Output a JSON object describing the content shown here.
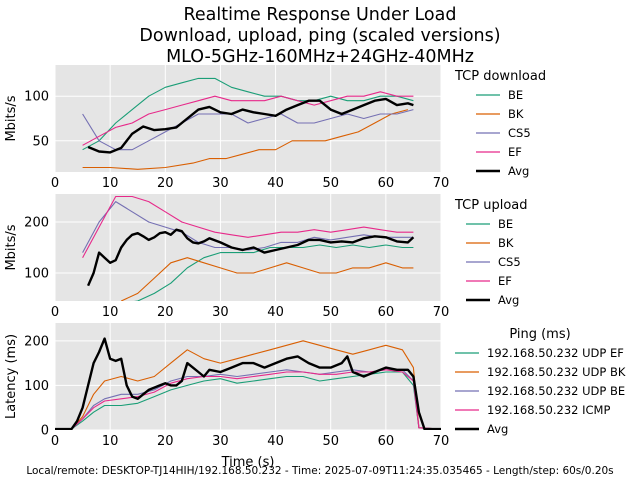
{
  "title_lines": [
    "Realtime Response Under Load",
    "Download, upload, ping (scaled versions)",
    "MLO-5GHz-160MHz+24GHz-40MHz"
  ],
  "footer": "Local/remote: DESKTOP-TJ14HIH/192.168.50.232 - Time: 2025-07-09T11:24:35.035465 - Length/step: 60s/0.20s",
  "colors": {
    "BE": "#1b9e77",
    "BK": "#d95f02",
    "CS5": "#7570b3",
    "EF": "#e7298a",
    "Avg": "#000000",
    "panel_bg": "#e5e5e5",
    "grid": "#ffffff"
  },
  "chart_data": [
    {
      "type": "line",
      "legend_title": "TCP download",
      "ylabel": "Mbits/s",
      "xlabel": "",
      "xlim": [
        0,
        70
      ],
      "ylim": [
        15,
        135
      ],
      "xticks": [
        0,
        10,
        20,
        30,
        40,
        50,
        60,
        70
      ],
      "yticks": [
        50,
        100
      ],
      "series": [
        {
          "name": "BE",
          "color": "#1b9e77",
          "x": [
            5,
            8,
            11,
            14,
            17,
            20,
            23,
            26,
            29,
            32,
            35,
            38,
            41,
            44,
            47,
            50,
            53,
            56,
            59,
            62,
            65
          ],
          "y": [
            40,
            50,
            70,
            85,
            100,
            110,
            115,
            120,
            120,
            110,
            105,
            100,
            100,
            95,
            95,
            100,
            95,
            95,
            100,
            100,
            95
          ]
        },
        {
          "name": "BK",
          "color": "#d95f02",
          "x": [
            5,
            10,
            15,
            20,
            25,
            28,
            31,
            34,
            37,
            40,
            43,
            46,
            49,
            52,
            55,
            58,
            61,
            64
          ],
          "y": [
            20,
            20,
            18,
            20,
            25,
            30,
            30,
            35,
            40,
            40,
            50,
            50,
            50,
            55,
            60,
            70,
            80,
            85
          ]
        },
        {
          "name": "CS5",
          "color": "#7570b3",
          "x": [
            5,
            8,
            11,
            14,
            17,
            20,
            23,
            26,
            29,
            32,
            35,
            38,
            41,
            44,
            47,
            50,
            53,
            56,
            59,
            62,
            65
          ],
          "y": [
            80,
            50,
            40,
            40,
            50,
            60,
            70,
            80,
            80,
            80,
            70,
            75,
            80,
            70,
            70,
            75,
            80,
            75,
            80,
            80,
            85
          ]
        },
        {
          "name": "EF",
          "color": "#e7298a",
          "x": [
            5,
            8,
            11,
            14,
            17,
            20,
            23,
            26,
            29,
            32,
            35,
            38,
            41,
            44,
            47,
            50,
            53,
            56,
            59,
            62,
            65
          ],
          "y": [
            45,
            55,
            65,
            70,
            80,
            85,
            90,
            95,
            100,
            95,
            95,
            95,
            100,
            95,
            90,
            95,
            100,
            100,
            105,
            100,
            100
          ]
        },
        {
          "name": "Avg",
          "color": "#000000",
          "x": [
            6,
            8,
            10,
            12,
            14,
            16,
            18,
            20,
            22,
            24,
            26,
            28,
            30,
            32,
            34,
            36,
            38,
            40,
            42,
            44,
            46,
            48,
            50,
            52,
            54,
            56,
            58,
            60,
            62,
            64,
            65
          ],
          "y": [
            43,
            38,
            37,
            42,
            58,
            66,
            62,
            63,
            65,
            75,
            85,
            88,
            82,
            80,
            85,
            82,
            80,
            78,
            85,
            90,
            95,
            95,
            85,
            80,
            85,
            90,
            95,
            97,
            90,
            92,
            90
          ]
        }
      ]
    },
    {
      "type": "line",
      "legend_title": "TCP upload",
      "ylabel": "Mbits/s",
      "xlabel": "",
      "xlim": [
        0,
        70
      ],
      "ylim": [
        45,
        255
      ],
      "xticks": [
        0,
        10,
        20,
        30,
        40,
        50,
        60,
        70
      ],
      "yticks": [
        100,
        200
      ],
      "series": [
        {
          "name": "BE",
          "color": "#1b9e77",
          "x": [
            12,
            15,
            18,
            21,
            24,
            27,
            30,
            33,
            36,
            39,
            42,
            45,
            48,
            51,
            54,
            57,
            60,
            63,
            65
          ],
          "y": [
            40,
            45,
            60,
            80,
            110,
            130,
            140,
            140,
            140,
            150,
            150,
            150,
            155,
            150,
            155,
            150,
            155,
            150,
            150
          ]
        },
        {
          "name": "BK",
          "color": "#d95f02",
          "x": [
            12,
            15,
            18,
            21,
            24,
            27,
            30,
            33,
            36,
            39,
            42,
            45,
            48,
            51,
            54,
            57,
            60,
            63,
            65
          ],
          "y": [
            45,
            60,
            90,
            120,
            130,
            120,
            110,
            100,
            100,
            110,
            120,
            110,
            100,
            100,
            110,
            110,
            120,
            110,
            110
          ]
        },
        {
          "name": "CS5",
          "color": "#7570b3",
          "x": [
            5,
            8,
            11,
            14,
            17,
            20,
            23,
            26,
            29,
            32,
            35,
            38,
            41,
            44,
            47,
            50,
            53,
            56,
            59,
            62,
            65
          ],
          "y": [
            140,
            200,
            240,
            220,
            200,
            190,
            180,
            160,
            150,
            150,
            145,
            150,
            160,
            160,
            170,
            165,
            170,
            175,
            170,
            170,
            170
          ]
        },
        {
          "name": "EF",
          "color": "#e7298a",
          "x": [
            5,
            8,
            11,
            14,
            17,
            20,
            23,
            26,
            29,
            32,
            35,
            38,
            41,
            44,
            47,
            50,
            53,
            56,
            59,
            62,
            65
          ],
          "y": [
            130,
            190,
            250,
            250,
            240,
            220,
            200,
            190,
            180,
            175,
            170,
            175,
            180,
            180,
            185,
            180,
            185,
            190,
            185,
            180,
            180
          ]
        },
        {
          "name": "Avg",
          "color": "#000000",
          "x": [
            6,
            7,
            8,
            9,
            10,
            11,
            12,
            13,
            14,
            15,
            16,
            17,
            18,
            19,
            20,
            21,
            22,
            23,
            24,
            25,
            26,
            27,
            28,
            30,
            32,
            34,
            36,
            38,
            40,
            42,
            44,
            46,
            48,
            50,
            52,
            54,
            56,
            58,
            60,
            62,
            64,
            65
          ],
          "y": [
            75,
            100,
            140,
            130,
            120,
            125,
            150,
            165,
            175,
            178,
            172,
            165,
            170,
            178,
            180,
            175,
            185,
            182,
            168,
            160,
            158,
            162,
            168,
            160,
            150,
            145,
            150,
            140,
            145,
            150,
            155,
            165,
            165,
            160,
            162,
            160,
            168,
            172,
            170,
            162,
            160,
            170
          ]
        }
      ]
    },
    {
      "type": "line",
      "legend_title": "Ping (ms)",
      "ylabel": "Latency (ms)",
      "xlabel": "Time (s)",
      "xlim": [
        0,
        70
      ],
      "ylim": [
        0,
        240
      ],
      "xticks": [
        0,
        10,
        20,
        30,
        40,
        50,
        60,
        70
      ],
      "yticks": [
        0,
        100,
        200
      ],
      "series": [
        {
          "name": "192.168.50.232 UDP EF",
          "color": "#1b9e77",
          "x": [
            0,
            3,
            5,
            7,
            9,
            12,
            15,
            18,
            21,
            24,
            27,
            30,
            33,
            36,
            39,
            42,
            45,
            48,
            51,
            54,
            57,
            60,
            63,
            65,
            66,
            70
          ],
          "y": [
            2,
            2,
            20,
            40,
            55,
            55,
            60,
            75,
            90,
            100,
            110,
            115,
            105,
            110,
            115,
            120,
            120,
            110,
            115,
            120,
            125,
            130,
            130,
            100,
            5,
            2
          ]
        },
        {
          "name": "192.168.50.232 UDP BK",
          "color": "#d95f02",
          "x": [
            0,
            3,
            5,
            7,
            9,
            12,
            15,
            18,
            21,
            24,
            27,
            30,
            33,
            36,
            39,
            42,
            45,
            48,
            51,
            54,
            57,
            60,
            63,
            65,
            66,
            70
          ],
          "y": [
            2,
            2,
            30,
            80,
            110,
            120,
            110,
            120,
            150,
            180,
            160,
            150,
            160,
            170,
            180,
            190,
            200,
            190,
            180,
            170,
            180,
            190,
            180,
            140,
            5,
            2
          ]
        },
        {
          "name": "192.168.50.232 UDP BE",
          "color": "#7570b3",
          "x": [
            0,
            3,
            5,
            7,
            9,
            12,
            15,
            18,
            21,
            24,
            27,
            30,
            33,
            36,
            39,
            42,
            45,
            48,
            51,
            54,
            57,
            60,
            63,
            65,
            66,
            70
          ],
          "y": [
            2,
            2,
            25,
            55,
            70,
            80,
            80,
            90,
            110,
            120,
            120,
            125,
            120,
            125,
            130,
            135,
            130,
            125,
            130,
            135,
            130,
            135,
            135,
            110,
            5,
            2
          ]
        },
        {
          "name": "192.168.50.232 ICMP",
          "color": "#e7298a",
          "x": [
            0,
            3,
            5,
            7,
            9,
            12,
            15,
            18,
            21,
            24,
            27,
            30,
            33,
            36,
            39,
            42,
            45,
            48,
            51,
            54,
            57,
            60,
            63,
            65,
            66,
            70
          ],
          "y": [
            2,
            2,
            25,
            50,
            65,
            70,
            75,
            85,
            105,
            115,
            120,
            120,
            115,
            120,
            125,
            130,
            130,
            125,
            125,
            130,
            130,
            135,
            130,
            110,
            5,
            2
          ]
        },
        {
          "name": "Avg",
          "color": "#000000",
          "x": [
            0,
            3,
            4,
            5,
            6,
            7,
            8,
            9,
            10,
            11,
            12,
            13,
            14,
            15,
            16,
            17,
            18,
            19,
            20,
            21,
            22,
            23,
            24,
            25,
            26,
            27,
            28,
            30,
            32,
            34,
            36,
            38,
            40,
            42,
            44,
            46,
            48,
            50,
            52,
            53,
            54,
            56,
            58,
            60,
            62,
            64,
            65,
            66,
            67,
            70
          ],
          "y": [
            2,
            2,
            20,
            50,
            100,
            150,
            175,
            205,
            160,
            155,
            160,
            100,
            75,
            70,
            80,
            90,
            95,
            100,
            105,
            100,
            100,
            110,
            150,
            140,
            130,
            120,
            135,
            130,
            140,
            150,
            150,
            140,
            150,
            160,
            165,
            150,
            140,
            140,
            150,
            165,
            130,
            120,
            130,
            140,
            135,
            135,
            120,
            40,
            2,
            2
          ]
        }
      ]
    }
  ]
}
